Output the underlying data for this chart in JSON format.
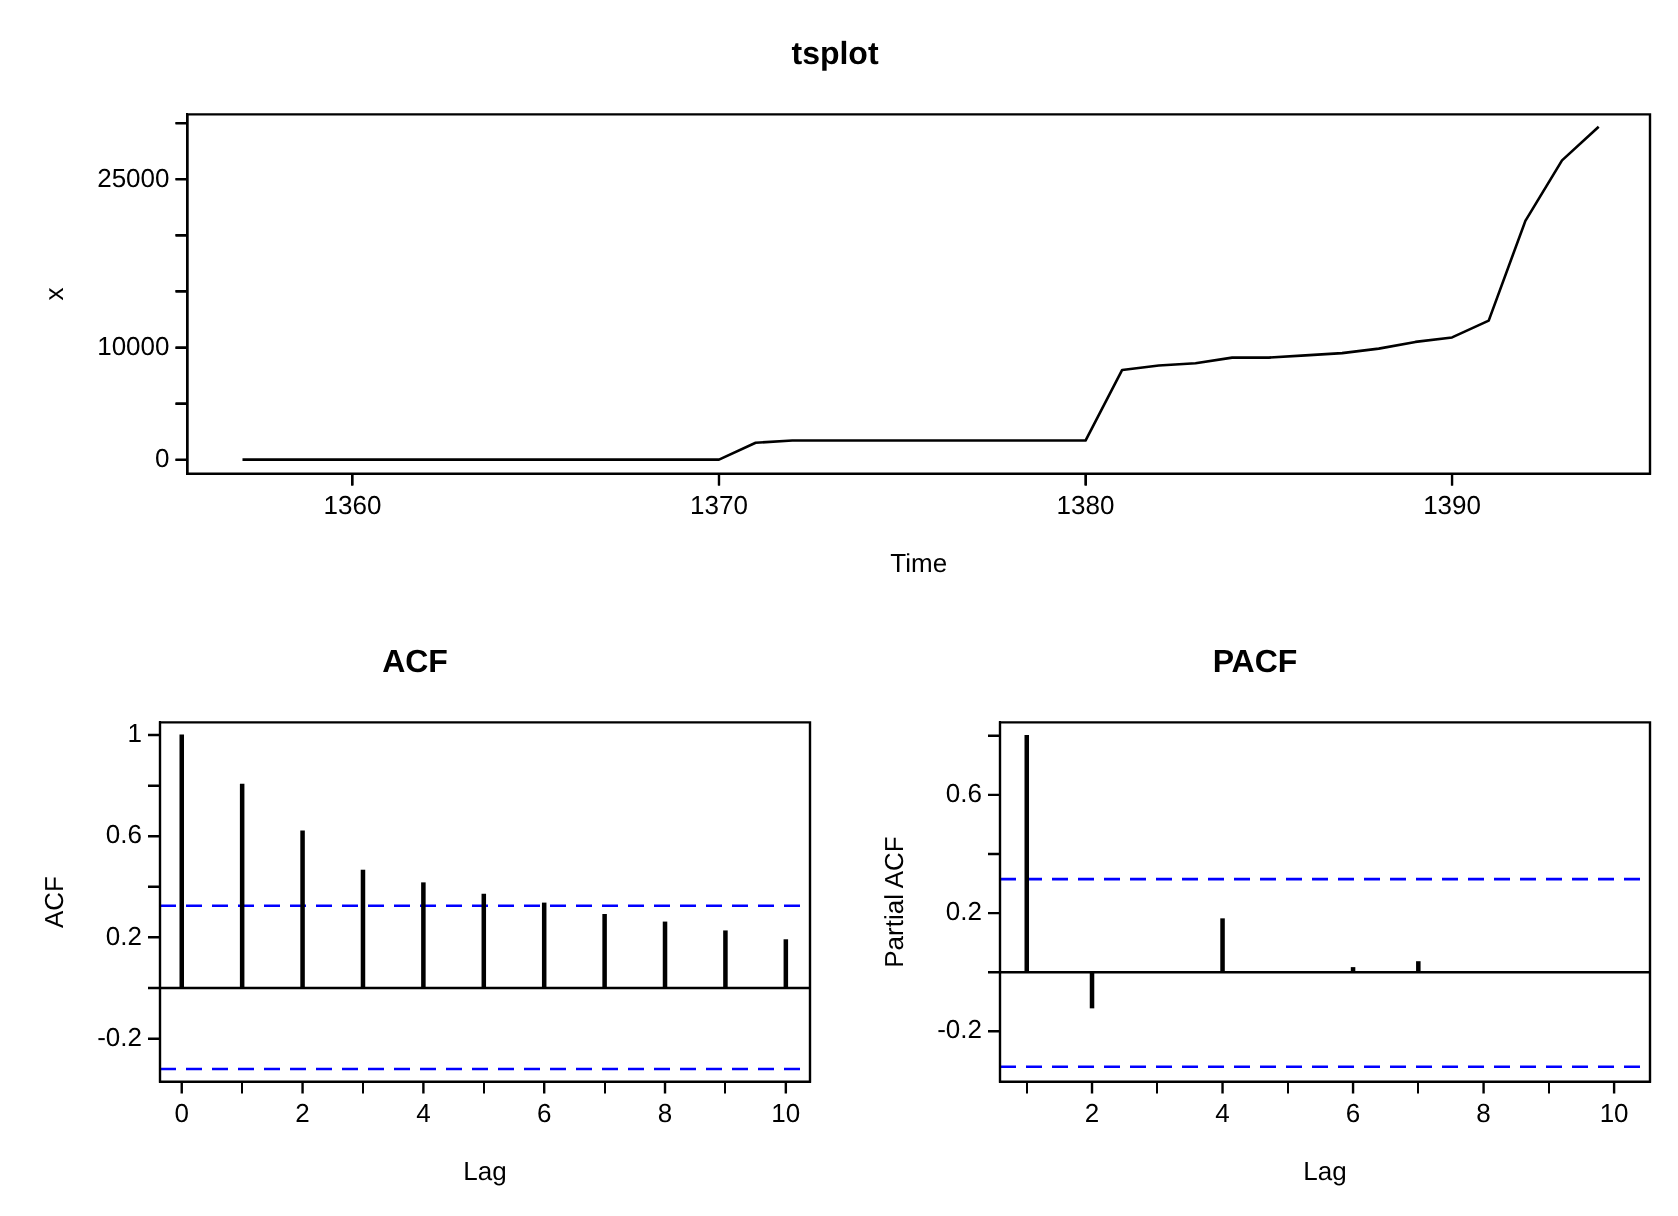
{
  "chart_data": [
    {
      "type": "line",
      "title": "tsplot",
      "xlabel": "Time",
      "ylabel": "x",
      "x": [
        1357,
        1358,
        1359,
        1360,
        1361,
        1362,
        1363,
        1364,
        1365,
        1366,
        1367,
        1368,
        1369,
        1370,
        1371,
        1372,
        1373,
        1374,
        1375,
        1376,
        1377,
        1378,
        1379,
        1380,
        1381,
        1382,
        1383,
        1384,
        1385,
        1386,
        1387,
        1388,
        1389,
        1390,
        1391,
        1392,
        1393,
        1394
      ],
      "series": [
        {
          "color": "#000000",
          "values": [
            0,
            0,
            0,
            0,
            0,
            0,
            0,
            0,
            0,
            0,
            0,
            0,
            0,
            0,
            1500,
            1700,
            1700,
            1700,
            1700,
            1700,
            1700,
            1700,
            1700,
            1700,
            8000,
            8400,
            8600,
            9100,
            9100,
            9300,
            9500,
            9900,
            10500,
            10900,
            12400,
            21300,
            26700,
            29700
          ]
        }
      ],
      "xlim": [
        1355.5,
        1395.4
      ],
      "xticks": [
        1360,
        1370,
        1380,
        1390
      ],
      "ylim": [
        -1250,
        30800
      ],
      "yticks": [
        0,
        {
          "value": 5000,
          "label": null
        },
        10000,
        {
          "value": 15000,
          "label": null
        },
        {
          "value": 20000,
          "label": null
        },
        25000,
        {
          "value": 30000,
          "label": null
        }
      ],
      "grid": false,
      "legend": false,
      "marker": "none",
      "line_style": "solid"
    },
    {
      "type": "bar",
      "title": "ACF",
      "xlabel": "Lag",
      "ylabel": "ACF",
      "x": [
        0,
        1,
        2,
        3,
        4,
        5,
        6,
        7,
        8,
        9,
        10
      ],
      "series": [
        {
          "color": "#000000",
          "values": [
            1.0,
            0.805,
            0.62,
            0.465,
            0.415,
            0.37,
            0.335,
            0.29,
            0.26,
            0.225,
            0.19
          ]
        }
      ],
      "xlim": [
        -0.36,
        10.4
      ],
      "xticks": [
        0,
        2,
        4,
        6,
        8,
        10
      ],
      "ylim": [
        -0.37,
        1.05
      ],
      "yticks": [
        -0.2,
        {
          "value": 0,
          "label": null
        },
        0.2,
        {
          "value": 0.4,
          "label": null
        },
        0.6,
        {
          "value": 0.8,
          "label": null
        },
        1.0
      ],
      "ref_lines": [
        {
          "axis": "y",
          "value": 0,
          "color": "#000000",
          "line_style": "solid"
        },
        {
          "axis": "y",
          "value": 0.325,
          "color": "#0000ff",
          "line_style": "dashed"
        },
        {
          "axis": "y",
          "value": -0.32,
          "color": "#0000ff",
          "line_style": "dashed"
        }
      ],
      "grid": false,
      "legend": false
    },
    {
      "type": "bar",
      "title": "PACF",
      "xlabel": "Lag",
      "ylabel": "Partial ACF",
      "x": [
        1,
        2,
        3,
        4,
        5,
        6,
        7,
        8,
        9,
        10
      ],
      "series": [
        {
          "color": "#000000",
          "values": [
            0.8,
            -0.12,
            0.0,
            0.18,
            0.0,
            0.015,
            0.035,
            0.0,
            null,
            0.0
          ]
        }
      ],
      "xlim": [
        0.59,
        10.55
      ],
      "xticks": [
        2,
        4,
        6,
        8,
        10
      ],
      "ylim": [
        -0.37,
        0.845
      ],
      "yticks": [
        -0.2,
        {
          "value": 0,
          "label": null
        },
        0.2,
        {
          "value": 0.4,
          "label": null
        },
        0.6,
        {
          "value": 0.8,
          "label": null
        }
      ],
      "ref_lines": [
        {
          "axis": "y",
          "value": 0,
          "color": "#000000",
          "line_style": "solid"
        },
        {
          "axis": "y",
          "value": 0.315,
          "color": "#0000ff",
          "line_style": "dashed"
        },
        {
          "axis": "y",
          "value": -0.32,
          "color": "#0000ff",
          "line_style": "dashed"
        }
      ],
      "grid": false,
      "legend": false
    }
  ]
}
